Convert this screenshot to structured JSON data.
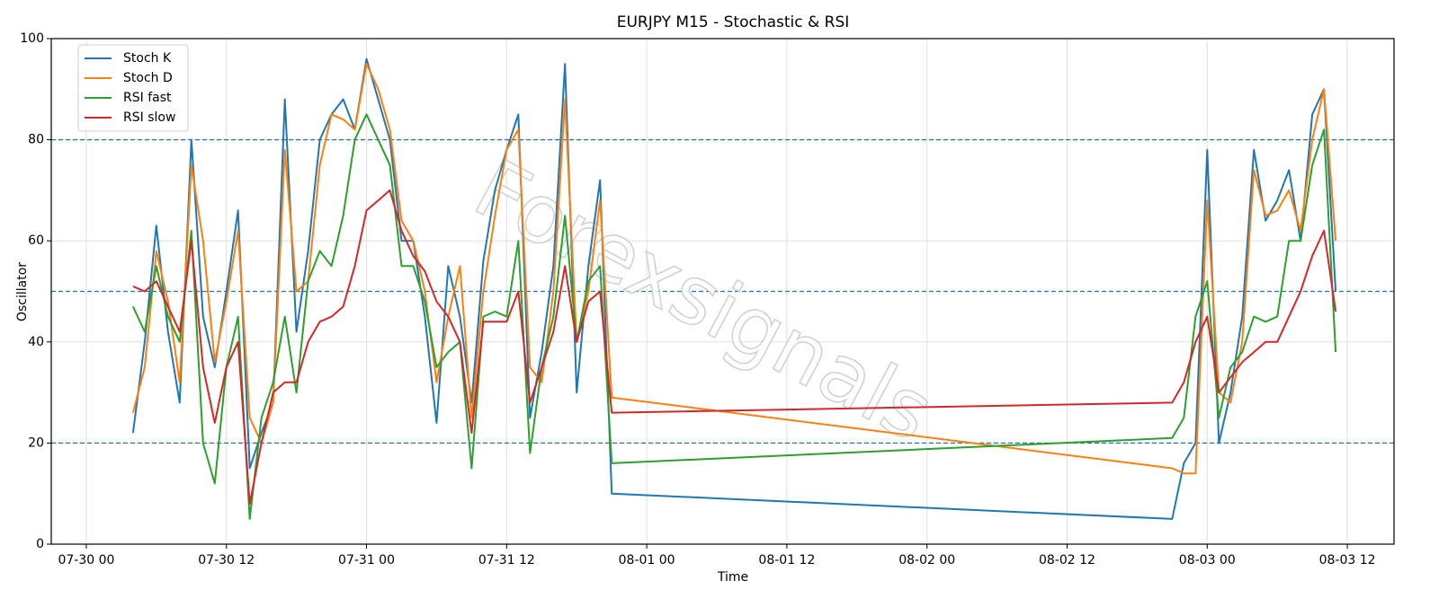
{
  "chart_data": {
    "type": "line",
    "title": "EURJPY M15 - Stochastic & RSI",
    "x_label": "Time",
    "y_label": "Oscillator",
    "watermark": "Forexsignals",
    "x": [
      "07-30 04",
      "07-30 05",
      "07-30 06",
      "07-30 07",
      "07-30 08",
      "07-30 09",
      "07-30 10",
      "07-30 11",
      "07-30 12",
      "07-30 13",
      "07-30 14",
      "07-30 15",
      "07-30 16",
      "07-30 17",
      "07-30 18",
      "07-30 19",
      "07-30 20",
      "07-30 21",
      "07-30 22",
      "07-30 23",
      "07-31 00",
      "07-31 01",
      "07-31 02",
      "07-31 03",
      "07-31 04",
      "07-31 05",
      "07-31 06",
      "07-31 07",
      "07-31 08",
      "07-31 09",
      "07-31 10",
      "07-31 11",
      "07-31 12",
      "07-31 13",
      "07-31 14",
      "07-31 15",
      "07-31 16",
      "07-31 17",
      "07-31 18",
      "07-31 19",
      "07-31 20",
      "07-31 21",
      "08-02 21",
      "08-02 22",
      "08-02 23",
      "08-03 00",
      "08-03 01",
      "08-03 02",
      "08-03 03",
      "08-03 04",
      "08-03 05",
      "08-03 06",
      "08-03 07",
      "08-03 08",
      "08-03 09",
      "08-03 10",
      "08-03 11"
    ],
    "series": [
      {
        "name": "Stoch K",
        "color": "#1f77b4",
        "values": [
          22,
          40,
          63,
          42,
          28,
          80,
          45,
          35,
          50,
          66,
          15,
          22,
          28,
          88,
          42,
          58,
          80,
          85,
          88,
          82,
          96,
          88,
          80,
          60,
          60,
          45,
          24,
          55,
          45,
          28,
          56,
          70,
          78,
          85,
          25,
          38,
          55,
          95,
          30,
          55,
          72,
          10,
          5,
          16,
          20,
          78,
          20,
          30,
          45,
          78,
          64,
          68,
          74,
          60,
          85,
          90,
          50
        ]
      },
      {
        "name": "Stoch D",
        "color": "#ff7f0e",
        "values": [
          26,
          35,
          58,
          48,
          32,
          75,
          60,
          36,
          48,
          62,
          25,
          20,
          28,
          78,
          50,
          52,
          75,
          85,
          84,
          82,
          95,
          90,
          82,
          64,
          60,
          50,
          32,
          45,
          55,
          25,
          50,
          65,
          78,
          82,
          35,
          32,
          50,
          88,
          40,
          50,
          68,
          29,
          15,
          14,
          14,
          68,
          30,
          28,
          40,
          74,
          65,
          66,
          70,
          62,
          80,
          90,
          60
        ]
      },
      {
        "name": "RSI fast",
        "color": "#2ca02c",
        "values": [
          47,
          42,
          55,
          45,
          40,
          62,
          20,
          12,
          35,
          45,
          5,
          25,
          32,
          45,
          30,
          52,
          58,
          55,
          65,
          80,
          85,
          80,
          75,
          55,
          55,
          48,
          35,
          38,
          40,
          15,
          45,
          46,
          45,
          60,
          18,
          35,
          45,
          65,
          40,
          52,
          55,
          16,
          21,
          25,
          45,
          52,
          25,
          35,
          38,
          45,
          44,
          45,
          60,
          60,
          75,
          82,
          38
        ]
      },
      {
        "name": "RSI slow",
        "color": "#d62728",
        "values": [
          51,
          50,
          52,
          47,
          42,
          60,
          35,
          24,
          35,
          40,
          8,
          20,
          30,
          32,
          32,
          40,
          44,
          45,
          47,
          55,
          66,
          68,
          70,
          62,
          57,
          54,
          48,
          45,
          40,
          22,
          44,
          44,
          44,
          50,
          28,
          35,
          42,
          55,
          40,
          48,
          50,
          26,
          28,
          32,
          40,
          45,
          30,
          33,
          36,
          38,
          40,
          40,
          45,
          50,
          57,
          62,
          46
        ]
      }
    ],
    "xlim": [
      "07-29 21",
      "08-03 16"
    ],
    "xticks": [
      "07-30 00",
      "07-30 12",
      "07-31 00",
      "07-31 12",
      "08-01 00",
      "08-01 12",
      "08-02 00",
      "08-02 12",
      "08-03 00",
      "08-03 12"
    ],
    "ylim": [
      0,
      100
    ],
    "yticks": [
      0,
      20,
      40,
      60,
      80,
      100
    ],
    "hlines": [
      20,
      50,
      80
    ],
    "hline_color": "#1f77b4",
    "grid": true,
    "legend": "upper left"
  }
}
